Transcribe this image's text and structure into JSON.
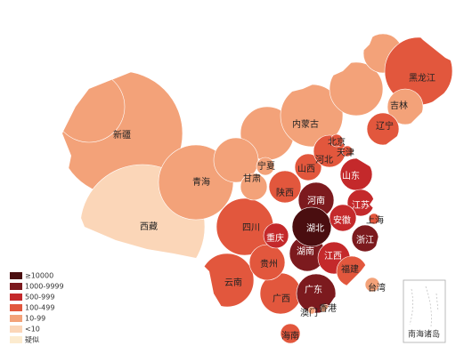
{
  "map": {
    "legend": [
      {
        "label": "≥10000",
        "color": "#4a0e10"
      },
      {
        "label": "1000-9999",
        "color": "#7c1a1e"
      },
      {
        "label": "500-999",
        "color": "#c4292b"
      },
      {
        "label": "100-499",
        "color": "#e2573d"
      },
      {
        "label": "10-99",
        "color": "#f3a279"
      },
      {
        "label": "<10",
        "color": "#fbd6b8"
      },
      {
        "label": "疑似",
        "color": "#fcebcf"
      }
    ],
    "regions": [
      {
        "name": "新疆",
        "color": "#f3a279"
      },
      {
        "name": "西藏",
        "color": "#fbd6b8"
      },
      {
        "name": "内蒙古",
        "color": "#f3a279"
      },
      {
        "name": "青海",
        "color": "#f3a279"
      },
      {
        "name": "黑龙江",
        "color": "#e2573d"
      },
      {
        "name": "四川",
        "color": "#e2573d"
      },
      {
        "name": "云南",
        "color": "#e2573d"
      },
      {
        "name": "甘肃",
        "color": "#f3a279"
      },
      {
        "name": "吉林",
        "color": "#f3a279"
      },
      {
        "name": "辽宁",
        "color": "#e2573d"
      },
      {
        "name": "陕西",
        "color": "#e2573d"
      },
      {
        "name": "山西",
        "color": "#e2573d"
      },
      {
        "name": "河北",
        "color": "#e2573d"
      },
      {
        "name": "广西",
        "color": "#e2573d"
      },
      {
        "name": "贵州",
        "color": "#e2573d"
      },
      {
        "name": "山东",
        "color": "#c4292b"
      },
      {
        "name": "河南",
        "color": "#7c1a1e"
      },
      {
        "name": "湖南",
        "color": "#7c1a1e"
      },
      {
        "name": "江西",
        "color": "#c4292b"
      },
      {
        "name": "广东",
        "color": "#7c1a1e"
      },
      {
        "name": "福建",
        "color": "#e2573d"
      },
      {
        "name": "湖北",
        "color": "#4a0e10"
      },
      {
        "name": "重庆",
        "color": "#c4292b"
      },
      {
        "name": "江苏",
        "color": "#c4292b"
      },
      {
        "name": "安徽",
        "color": "#c4292b"
      },
      {
        "name": "浙江",
        "color": "#7c1a1e"
      },
      {
        "name": "宁夏",
        "color": "#f3a279"
      },
      {
        "name": "北京",
        "color": "#e2573d"
      },
      {
        "name": "天津",
        "color": "#e2573d"
      },
      {
        "name": "上海",
        "color": "#e2573d"
      },
      {
        "name": "香港",
        "color": "#f3a279"
      },
      {
        "name": "澳门",
        "color": "#f3a279"
      },
      {
        "name": "海南",
        "color": "#e2573d"
      },
      {
        "name": "台湾",
        "color": "#f3a279"
      }
    ],
    "inset_label": "南海诸岛"
  }
}
